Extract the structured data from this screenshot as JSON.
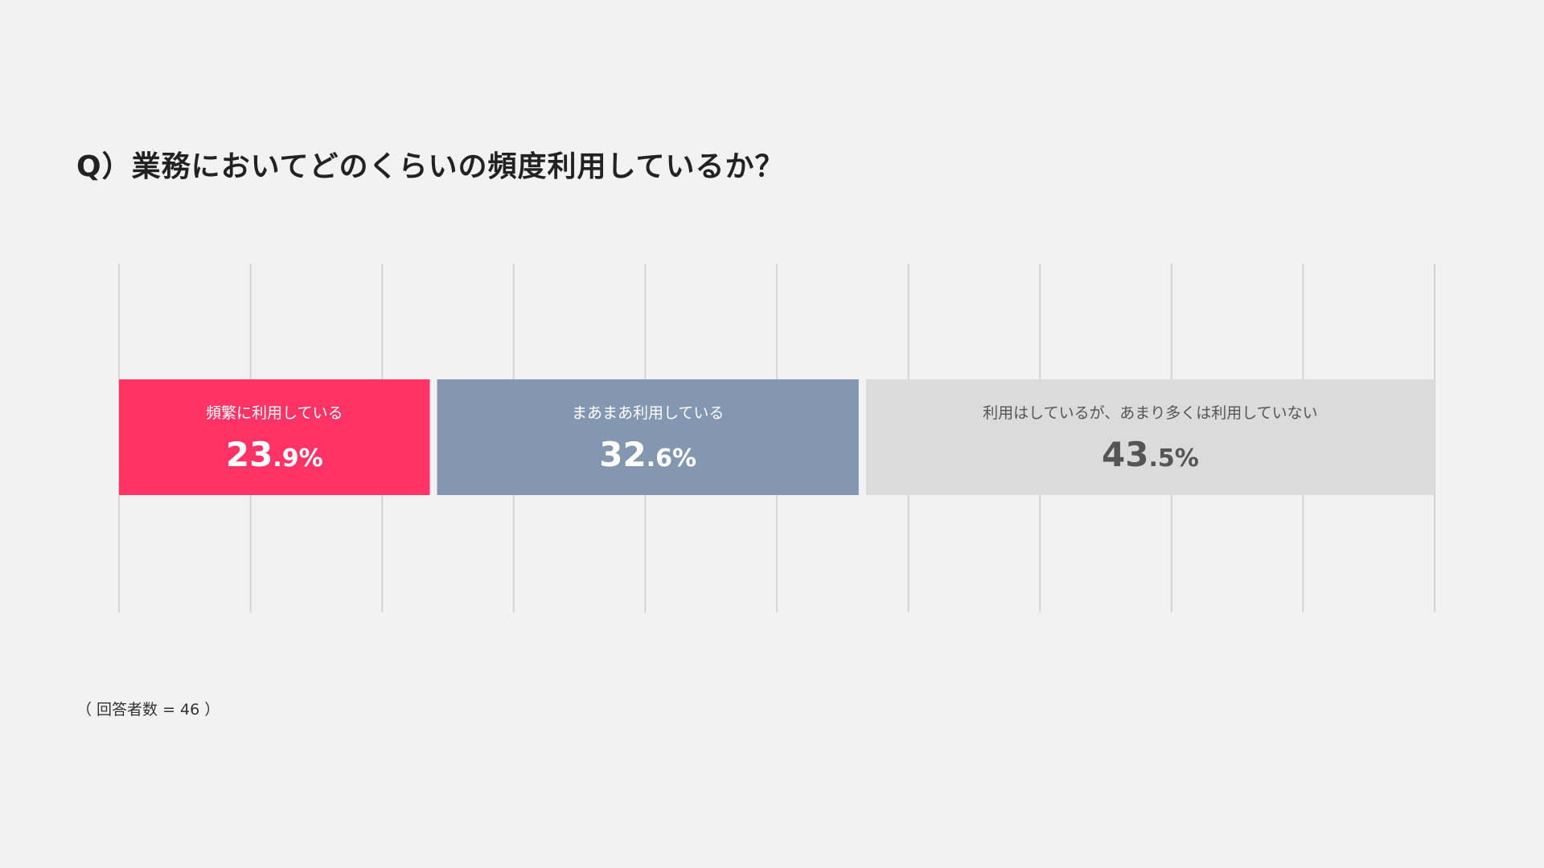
{
  "question": "Q）業務においてどのくらいの頻度利用しているか？",
  "footnote": "（ 回答者数 = 46 ）",
  "chart_data": {
    "type": "bar",
    "orientation": "horizontal-stacked-100",
    "xlim": [
      0,
      100
    ],
    "grid": true,
    "grid_step": 10,
    "unit": "%",
    "segments": [
      {
        "label": "頻繁に利用している",
        "value": 23.9,
        "value_int": "23",
        "value_dec": ".9",
        "color": "#ff3366",
        "text_color": "#ffffff"
      },
      {
        "label": "まあまあ利用している",
        "value": 32.6,
        "value_int": "32",
        "value_dec": ".6",
        "color": "#8497b0",
        "text_color": "#ffffff"
      },
      {
        "label": "利用はしているが、あまり多くは利用していない",
        "value": 43.5,
        "value_int": "43",
        "value_dec": ".5",
        "color": "#dbdbdb",
        "text_color": "#555555"
      }
    ]
  }
}
